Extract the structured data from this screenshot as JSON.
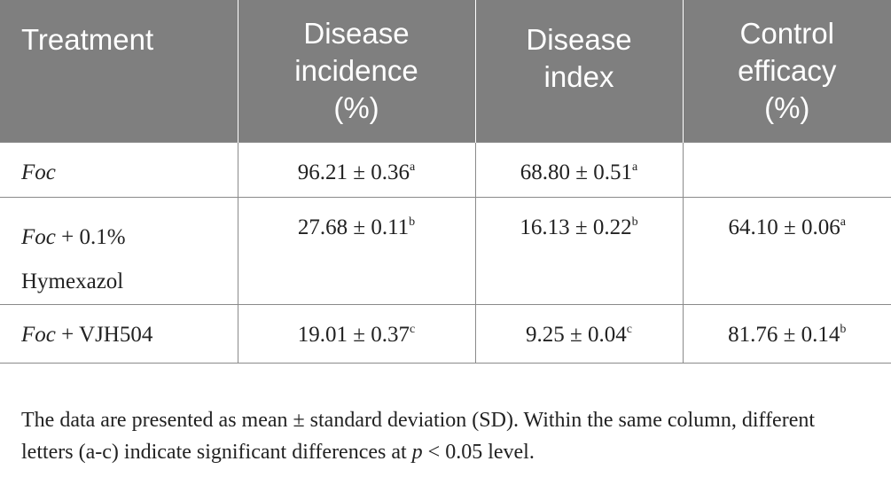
{
  "table": {
    "headers": [
      {
        "lines": [
          "Treatment"
        ]
      },
      {
        "lines": [
          "Disease",
          "incidence",
          "(%)"
        ]
      },
      {
        "lines": [
          "Disease",
          "index"
        ]
      },
      {
        "lines": [
          "Control",
          "efficacy",
          "(%)"
        ]
      }
    ],
    "rows": [
      {
        "treatment_italic": "Foc",
        "treatment_rest": "",
        "treatment_line2": "",
        "incidence": "96.21 ± 0.36",
        "incidence_sup": "a",
        "index": "68.80 ± 0.51",
        "index_sup": "a",
        "efficacy": "",
        "efficacy_sup": ""
      },
      {
        "treatment_italic": "Foc",
        "treatment_rest": " + 0.1%",
        "treatment_line2": "Hymexazol",
        "incidence": "27.68 ± 0.11",
        "incidence_sup": "b",
        "index": "16.13 ± 0.22",
        "index_sup": "b",
        "efficacy": "64.10 ± 0.06",
        "efficacy_sup": "a"
      },
      {
        "treatment_italic": "Foc",
        "treatment_rest": " + VJH504",
        "treatment_line2": "",
        "incidence": "19.01 ± 0.37",
        "incidence_sup": "c",
        "index": "9.25 ± 0.04",
        "index_sup": "c",
        "efficacy": "81.76 ± 0.14",
        "efficacy_sup": "b"
      }
    ]
  },
  "footnote": {
    "line1": "The data are presented as mean ± standard deviation (SD). Within the same column, different",
    "line2_pre": "letters (a-c) indicate significant differences at ",
    "line2_italic": "p",
    "line2_post": " < 0.05 level."
  },
  "colors": {
    "header_bg": "#7f7f7f",
    "header_text": "#ffffff",
    "body_text": "#222222",
    "rule": "#8a8a8a"
  }
}
